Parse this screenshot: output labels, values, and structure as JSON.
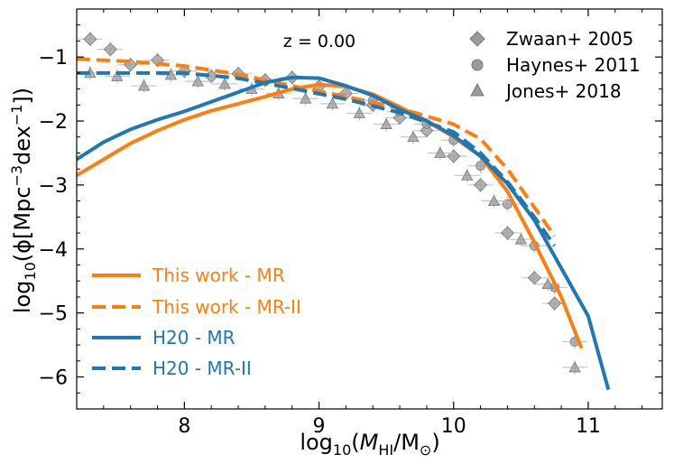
{
  "chart_data": {
    "type": "line",
    "annotation": "z = 0.00",
    "xlabel": {
      "prefix": "log",
      "sub": "10",
      "open": "(",
      "var": "M",
      "var_sub": "HI",
      "slash": "/M",
      "sun": "⊙",
      "close": ")"
    },
    "ylabel": {
      "prefix": "log",
      "sub": "10",
      "open": "(ϕ[Mpc",
      "sup1": "−3",
      "mid": "dex",
      "sup2": "−1",
      "close": "])"
    },
    "xlim": [
      7.2,
      11.55
    ],
    "ylim": [
      -6.5,
      -0.25
    ],
    "xticks": [
      8,
      9,
      10,
      11
    ],
    "xtick_labels": [
      "8",
      "9",
      "10",
      "11"
    ],
    "yticks": [
      -6,
      -5,
      -4,
      -3,
      -2,
      -1
    ],
    "ytick_labels": [
      "−6",
      "−5",
      "−4",
      "−3",
      "−2",
      "−1"
    ],
    "series": [
      {
        "name": "This work - MR",
        "color": "#ff7f0e",
        "style": "solid",
        "x": [
          7.2,
          7.4,
          7.6,
          7.8,
          8.0,
          8.2,
          8.4,
          8.6,
          8.8,
          9.0,
          9.2,
          9.4,
          9.6,
          9.8,
          10.0,
          10.2,
          10.4,
          10.6,
          10.8,
          10.95
        ],
        "y": [
          -2.85,
          -2.6,
          -2.35,
          -2.15,
          -1.98,
          -1.84,
          -1.73,
          -1.62,
          -1.5,
          -1.43,
          -1.46,
          -1.58,
          -1.78,
          -2.0,
          -2.25,
          -2.55,
          -3.1,
          -3.9,
          -4.75,
          -5.55
        ]
      },
      {
        "name": "This work - MR-II",
        "color": "#ff7f0e",
        "style": "dashed",
        "x": [
          7.2,
          7.6,
          8.0,
          8.4,
          8.8,
          9.2,
          9.6,
          10.0,
          10.2,
          10.4,
          10.6,
          10.75
        ],
        "y": [
          -1.03,
          -1.07,
          -1.14,
          -1.27,
          -1.45,
          -1.62,
          -1.8,
          -2.05,
          -2.28,
          -2.75,
          -3.35,
          -3.8
        ]
      },
      {
        "name": "H20 - MR",
        "color": "#1f77b4",
        "style": "solid",
        "x": [
          7.2,
          7.4,
          7.6,
          7.8,
          8.0,
          8.2,
          8.4,
          8.6,
          8.8,
          9.0,
          9.2,
          9.4,
          9.6,
          9.8,
          10.0,
          10.2,
          10.4,
          10.6,
          10.8,
          11.0,
          11.15
        ],
        "y": [
          -2.6,
          -2.33,
          -2.13,
          -1.98,
          -1.85,
          -1.7,
          -1.55,
          -1.4,
          -1.32,
          -1.33,
          -1.45,
          -1.6,
          -1.82,
          -2.0,
          -2.23,
          -2.55,
          -2.98,
          -3.55,
          -4.3,
          -5.05,
          -6.2
        ]
      },
      {
        "name": "H20 - MR-II",
        "color": "#1f77b4",
        "style": "dashed",
        "x": [
          7.2,
          7.6,
          8.0,
          8.4,
          8.8,
          9.2,
          9.6,
          10.0,
          10.2,
          10.4,
          10.6,
          10.75
        ],
        "y": [
          -1.25,
          -1.25,
          -1.25,
          -1.33,
          -1.49,
          -1.66,
          -1.87,
          -2.17,
          -2.5,
          -2.95,
          -3.5,
          -3.95
        ]
      }
    ],
    "observations": [
      {
        "name": "Zwaan+ 2005",
        "marker": "diamond",
        "x": [
          7.3,
          7.45,
          7.6,
          7.8,
          8.0,
          8.2,
          8.4,
          8.6,
          8.8,
          9.0,
          9.2,
          9.4,
          9.6,
          9.8,
          10.0,
          10.2,
          10.4,
          10.6,
          10.75
        ],
        "y": [
          -0.72,
          -0.88,
          -1.12,
          -1.05,
          -1.22,
          -1.3,
          -1.26,
          -1.36,
          -1.32,
          -1.46,
          -1.57,
          -1.75,
          -1.95,
          -2.15,
          -2.55,
          -3.0,
          -3.75,
          -4.45,
          -4.85
        ]
      },
      {
        "name": "Haynes+ 2011",
        "marker": "circle",
        "x": [
          9.4,
          9.6,
          9.8,
          10.0,
          10.2,
          10.4,
          10.6,
          10.75,
          10.9
        ],
        "y": [
          -1.68,
          -1.85,
          -2.05,
          -2.3,
          -2.7,
          -3.3,
          -3.95,
          -4.6,
          -5.45
        ]
      },
      {
        "name": "Jones+ 2018",
        "marker": "triangle",
        "x": [
          7.3,
          7.5,
          7.7,
          7.9,
          8.1,
          8.3,
          8.5,
          8.7,
          8.9,
          9.1,
          9.3,
          9.5,
          9.7,
          9.9,
          10.1,
          10.3,
          10.5,
          10.7,
          10.9
        ],
        "y": [
          -1.25,
          -1.3,
          -1.45,
          -1.28,
          -1.38,
          -1.42,
          -1.5,
          -1.57,
          -1.65,
          -1.73,
          -1.88,
          -2.05,
          -2.25,
          -2.5,
          -2.85,
          -3.25,
          -3.85,
          -4.55,
          -5.85
        ]
      }
    ]
  }
}
